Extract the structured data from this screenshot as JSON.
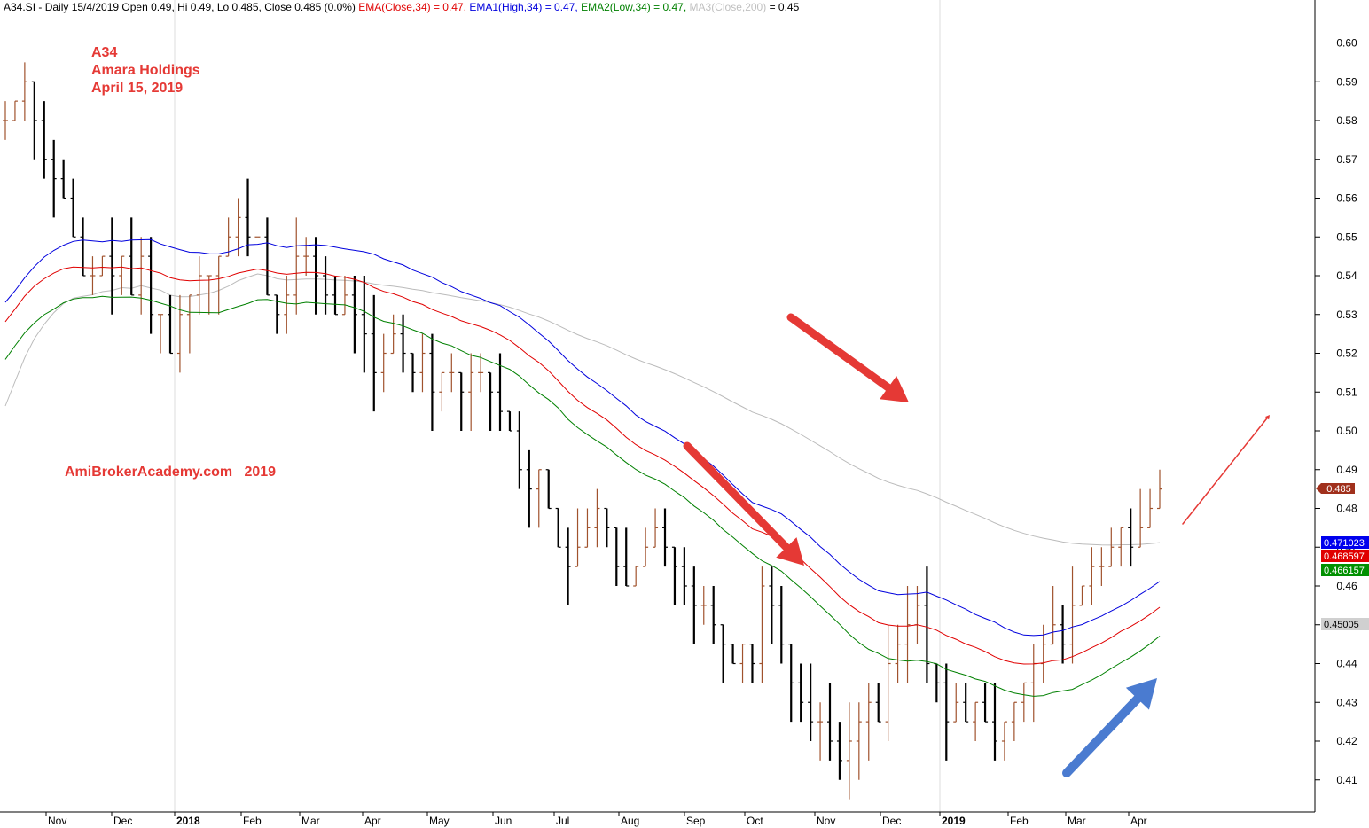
{
  "header": {
    "prefix": "A34.SI - Daily 15/4/2019 Open 0.49, Hi 0.49, Lo 0.485, Close 0.485 (0.0%)",
    "ema_close": "EMA(Close,34) = 0.47,",
    "ema1_high": "EMA1(High,34) = 0.47,",
    "ema2_low": "EMA2(Low,34) = 0.47,",
    "ma3_label": "MA3(Close,200)",
    "ma3_value": "= 0.45"
  },
  "annotations": {
    "ticker": "A34",
    "company": "Amara Holdings",
    "date": "April 15, 2019",
    "watermark": "AmiBrokerAcademy.com   2019"
  },
  "colors": {
    "ema_close": "#e00000",
    "ema_high": "#0000dd",
    "ema_low": "#008000",
    "ma200": "#bbbbbb",
    "bar_up": "#a0522d",
    "bar_down": "#000000",
    "arrow_red": "#e53935",
    "arrow_blue": "#4a7bd0"
  },
  "chart_data": {
    "type": "ohlc",
    "ylim": [
      0.405,
      0.61
    ],
    "y_ticks": [
      0.41,
      0.42,
      0.43,
      0.44,
      0.45,
      0.46,
      0.47,
      0.48,
      0.49,
      0.5,
      0.51,
      0.52,
      0.53,
      0.54,
      0.55,
      0.56,
      0.57,
      0.58,
      0.59,
      0.6
    ],
    "x_labels": [
      {
        "label": "Nov",
        "bold": false
      },
      {
        "label": "Dec",
        "bold": false
      },
      {
        "label": "2018",
        "bold": true
      },
      {
        "label": "Feb",
        "bold": false
      },
      {
        "label": "Mar",
        "bold": false
      },
      {
        "label": "Apr",
        "bold": false
      },
      {
        "label": "May",
        "bold": false
      },
      {
        "label": "Jun",
        "bold": false
      },
      {
        "label": "Jul",
        "bold": false
      },
      {
        "label": "Aug",
        "bold": false
      },
      {
        "label": "Sep",
        "bold": false
      },
      {
        "label": "Oct",
        "bold": false
      },
      {
        "label": "Nov",
        "bold": false
      },
      {
        "label": "Dec",
        "bold": false
      },
      {
        "label": "2019",
        "bold": true
      },
      {
        "label": "Feb",
        "bold": false
      },
      {
        "label": "Mar",
        "bold": false
      },
      {
        "label": "Apr",
        "bold": false
      }
    ],
    "close_path": [
      0.58,
      0.585,
      0.59,
      0.58,
      0.57,
      0.565,
      0.56,
      0.55,
      0.54,
      0.54,
      0.545,
      0.54,
      0.545,
      0.535,
      0.545,
      0.53,
      0.53,
      0.52,
      0.53,
      0.535,
      0.54,
      0.54,
      0.545,
      0.55,
      0.555,
      0.55,
      0.55,
      0.535,
      0.53,
      0.535,
      0.545,
      0.545,
      0.54,
      0.535,
      0.53,
      0.535,
      0.53,
      0.525,
      0.515,
      0.52,
      0.525,
      0.52,
      0.515,
      0.52,
      0.51,
      0.515,
      0.515,
      0.51,
      0.515,
      0.515,
      0.51,
      0.505,
      0.5,
      0.49,
      0.485,
      0.49,
      0.48,
      0.47,
      0.465,
      0.47,
      0.475,
      0.48,
      0.475,
      0.465,
      0.46,
      0.465,
      0.47,
      0.475,
      0.47,
      0.465,
      0.46,
      0.455,
      0.455,
      0.45,
      0.445,
      0.44,
      0.445,
      0.44,
      0.46,
      0.455,
      0.445,
      0.435,
      0.43,
      0.425,
      0.425,
      0.42,
      0.415,
      0.42,
      0.425,
      0.43,
      0.425,
      0.44,
      0.445,
      0.45,
      0.455,
      0.44,
      0.435,
      0.425,
      0.43,
      0.425,
      0.43,
      0.425,
      0.42,
      0.425,
      0.43,
      0.435,
      0.44,
      0.445,
      0.45,
      0.445,
      0.455,
      0.46,
      0.465,
      0.465,
      0.47,
      0.475,
      0.47,
      0.475,
      0.48,
      0.485
    ],
    "ohlc_count": 120,
    "ema_close_last": "0.468597",
    "ema_high_last": "0.471023",
    "ema_low_last": "0.466157",
    "ma200_last": "0.45005",
    "close_last": "0.485",
    "series": [
      {
        "name": "EMA(Close,34)",
        "last": 0.4686
      },
      {
        "name": "EMA1(High,34)",
        "last": 0.471
      },
      {
        "name": "EMA2(Low,34)",
        "last": 0.4662
      },
      {
        "name": "MA3(Close,200)",
        "last": 0.4501
      }
    ]
  }
}
